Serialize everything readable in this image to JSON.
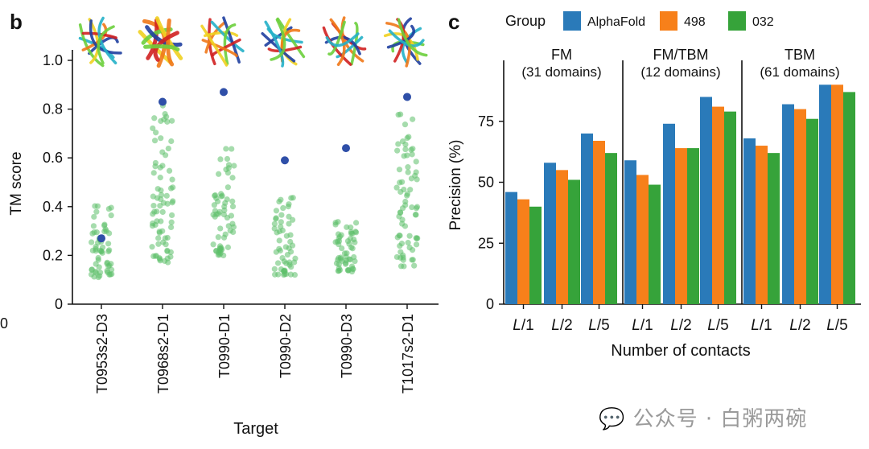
{
  "panel_b_label": "b",
  "panel_c_label": "c",
  "edge_fragment": "0",
  "protein_thumbnails": [
    "T0953s2-D3 structure",
    "T0968s2-D1 structure",
    "T0990-D1 structure",
    "T0990-D2 structure",
    "T0990-D3 structure",
    "T1017s2-D1 structure"
  ],
  "watermark": "公众号 · 白粥两碗",
  "colors": {
    "alphafold": "#2a7ab9",
    "g498": "#f7801a",
    "g032": "#36a33a",
    "scatter_green": "#5cbf6a",
    "scatter_blue": "#2f4fa8"
  },
  "chart_data": [
    {
      "type": "scatter",
      "xlabel": "Target",
      "ylabel": "TM score",
      "ylim": [
        0,
        1.0
      ],
      "yticks": [
        "0",
        "0.2",
        "0.4",
        "0.6",
        "0.8",
        "1.0"
      ],
      "yticks_values": [
        0,
        0.2,
        0.4,
        0.6,
        0.8,
        1.0
      ],
      "categories": [
        "T0953s2-D3",
        "T0968s2-D1",
        "T0990-D1",
        "T0990-D2",
        "T0990-D3",
        "T1017s2-D1"
      ],
      "alphafold_tm": [
        0.27,
        0.83,
        0.87,
        0.59,
        0.64,
        0.85
      ],
      "others_range": [
        [
          0.11,
          0.42
        ],
        [
          0.17,
          0.85
        ],
        [
          0.2,
          0.66
        ],
        [
          0.12,
          0.45
        ],
        [
          0.13,
          0.34
        ],
        [
          0.15,
          0.8
        ]
      ],
      "others_count": [
        60,
        75,
        60,
        55,
        55,
        70
      ]
    },
    {
      "type": "bar",
      "legend_title": "Group",
      "legend": [
        "AlphaFold",
        "498",
        "032"
      ],
      "xlabel": "Number of contacts",
      "ylabel": "Precision (%)",
      "ylim": [
        0,
        100
      ],
      "yticks": [
        "0",
        "25",
        "50",
        "75"
      ],
      "yticks_values": [
        0,
        25,
        50,
        75
      ],
      "categories": [
        "L/1",
        "L/2",
        "L/5"
      ],
      "panels": [
        {
          "title": "FM",
          "subtitle": "(31 domains)",
          "series": [
            {
              "name": "AlphaFold",
              "values": [
                46,
                58,
                70
              ]
            },
            {
              "name": "498",
              "values": [
                43,
                55,
                67
              ]
            },
            {
              "name": "032",
              "values": [
                40,
                51,
                62
              ]
            }
          ]
        },
        {
          "title": "FM/TBM",
          "subtitle": "(12 domains)",
          "series": [
            {
              "name": "AlphaFold",
              "values": [
                59,
                74,
                85
              ]
            },
            {
              "name": "498",
              "values": [
                53,
                64,
                81
              ]
            },
            {
              "name": "032",
              "values": [
                49,
                64,
                79
              ]
            }
          ]
        },
        {
          "title": "TBM",
          "subtitle": "(61 domains)",
          "series": [
            {
              "name": "AlphaFold",
              "values": [
                68,
                82,
                90
              ]
            },
            {
              "name": "498",
              "values": [
                65,
                80,
                90
              ]
            },
            {
              "name": "032",
              "values": [
                62,
                76,
                87
              ]
            }
          ]
        }
      ]
    }
  ]
}
